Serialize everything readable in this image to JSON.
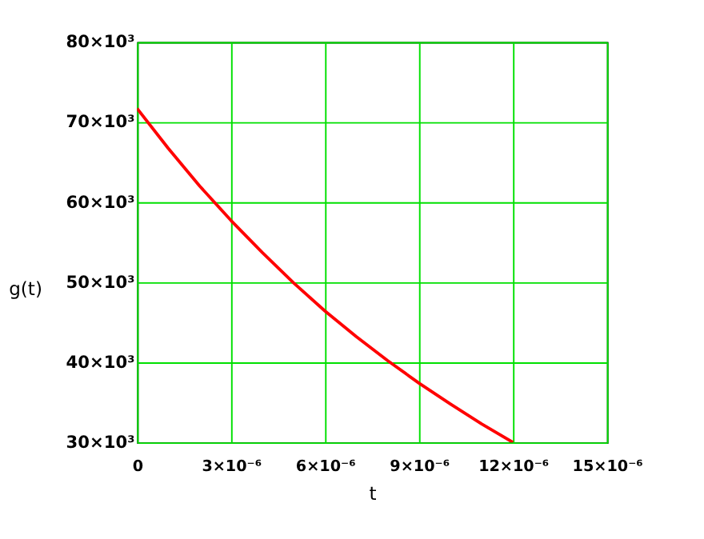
{
  "chart_data": {
    "type": "line",
    "xlabel": "t",
    "ylabel": "g(t)",
    "x": [
      0,
      1e-06,
      2e-06,
      3e-06,
      4e-06,
      5e-06,
      6e-06,
      7e-06,
      8e-06,
      9e-06,
      1e-05,
      1.1e-05,
      1.2e-05
    ],
    "series": [
      {
        "color": "#ff0000",
        "values": [
          71700,
          66700,
          62000,
          57700,
          53700,
          49900,
          46400,
          43200,
          40200,
          37400,
          34800,
          32300,
          30000
        ]
      }
    ],
    "xlim": [
      0,
      1.5e-05
    ],
    "xticks": [
      0,
      {
        "value": 3e-06,
        "label": "3×10⁻⁶"
      },
      {
        "value": 6e-06,
        "label": "6×10⁻⁶"
      },
      {
        "value": 9e-06,
        "label": "9×10⁻⁶"
      },
      {
        "value": 1.2e-05,
        "label": "12×10⁻⁶"
      },
      {
        "value": 1.5e-05,
        "label": "15×10⁻⁶"
      }
    ],
    "ylim": [
      30000,
      80000
    ],
    "yticks": [
      {
        "value": 30000,
        "label": "30×10³"
      },
      {
        "value": 40000,
        "label": "40×10³"
      },
      {
        "value": 50000,
        "label": "50×10³"
      },
      {
        "value": 60000,
        "label": "60×10³"
      },
      {
        "value": 70000,
        "label": "70×10³"
      },
      {
        "value": 80000,
        "label": "80×10³"
      }
    ],
    "grid": true,
    "line_style": "solid",
    "marker": "none"
  }
}
